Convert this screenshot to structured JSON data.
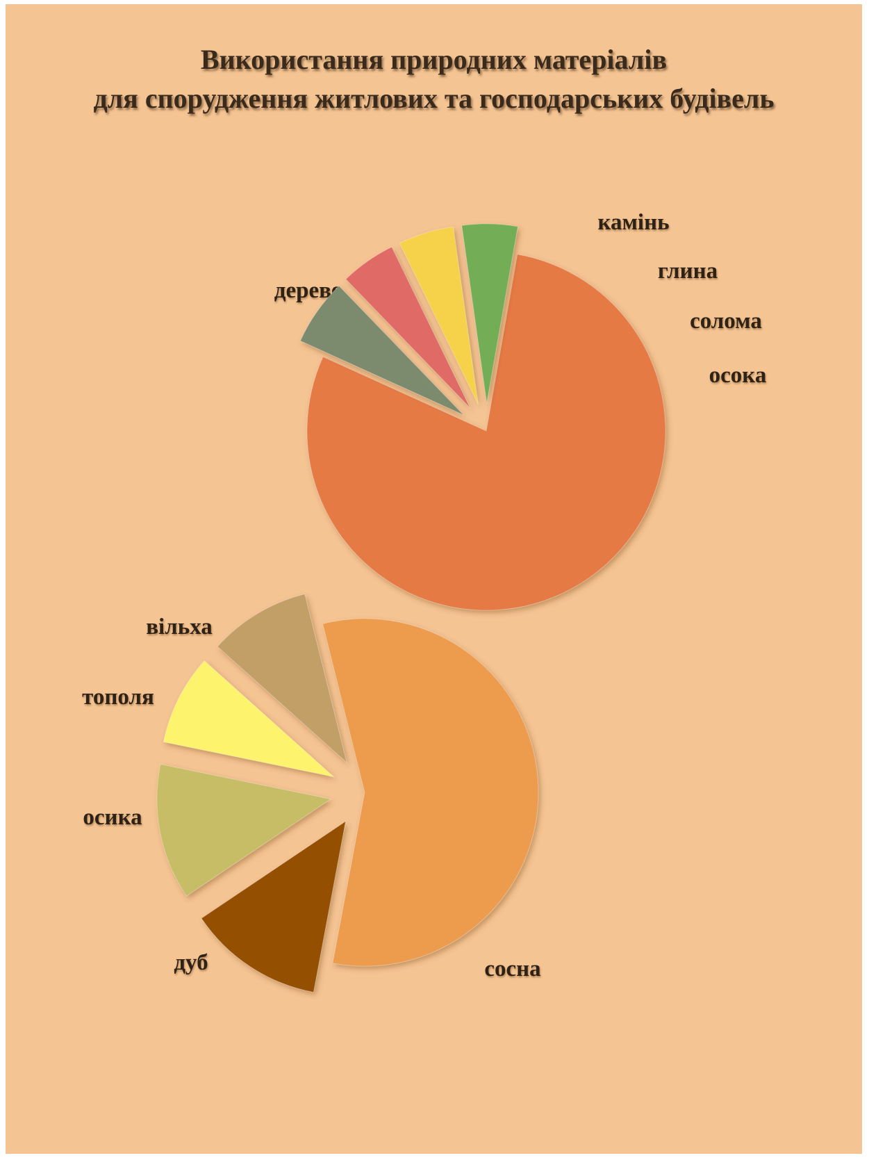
{
  "title_lines": [
    "Використання природних матеріалів",
    "для спорудження житлових та господарських будівель"
  ],
  "colors": {
    "background": "#f5c493"
  },
  "chart_data": [
    {
      "type": "pie",
      "title": "Використання природних матеріалів для спорудження житлових та господарських будівель",
      "slices": [
        {
          "label": "дерево",
          "value": 79,
          "color": "#e57a45"
        },
        {
          "label": "камінь",
          "value": 6,
          "color": "#7c8a6e"
        },
        {
          "label": "глина",
          "value": 5,
          "color": "#e06b65"
        },
        {
          "label": "солома",
          "value": 5,
          "color": "#f6d24c"
        },
        {
          "label": "осока",
          "value": 5,
          "color": "#73ad57"
        }
      ]
    },
    {
      "type": "pie",
      "slices": [
        {
          "label": "сосна",
          "value": 54,
          "color": "#ed9b4d"
        },
        {
          "label": "дуб",
          "value": 12,
          "color": "#944f05"
        },
        {
          "label": "осика",
          "value": 12,
          "color": "#c6bd66"
        },
        {
          "label": "тополя",
          "value": 8,
          "color": "#fdf36d"
        },
        {
          "label": "вільха",
          "value": 9,
          "color": "#c19f66"
        }
      ]
    }
  ]
}
